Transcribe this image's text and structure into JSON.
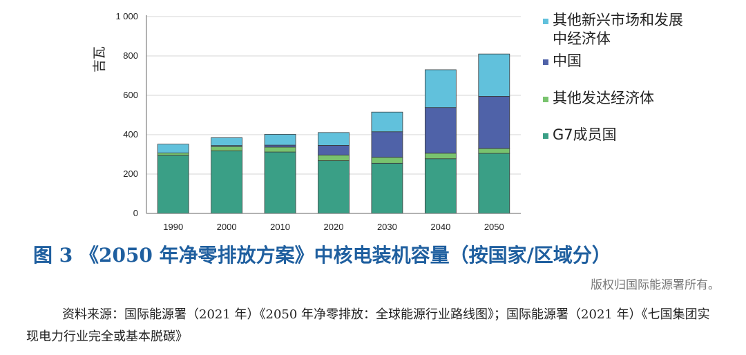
{
  "chart_data": {
    "type": "bar",
    "stacked": true,
    "categories": [
      "1990",
      "2000",
      "2010",
      "2020",
      "2030",
      "2040",
      "2050"
    ],
    "series": [
      {
        "name": "G7成员国",
        "color": "#3a9f86",
        "values": [
          295,
          318,
          312,
          268,
          255,
          278,
          305
        ]
      },
      {
        "name": "其他发达经济体",
        "color": "#79c36e",
        "values": [
          12,
          22,
          25,
          28,
          30,
          28,
          25
        ]
      },
      {
        "name": "中国",
        "color": "#4f62a8",
        "values": [
          0,
          5,
          10,
          50,
          130,
          232,
          265
        ]
      },
      {
        "name": "其他新兴市场和发展中经济体",
        "color": "#61c1dc",
        "values": [
          45,
          40,
          55,
          65,
          100,
          192,
          215
        ]
      }
    ],
    "ylabel": "吉瓦",
    "ylim": [
      0,
      1000
    ],
    "yticks": [
      "0",
      "200",
      "400",
      "600",
      "800",
      "1 000"
    ],
    "ytick_values": [
      0,
      200,
      400,
      600,
      800,
      1000
    ],
    "legend_position": "right",
    "legend": [
      {
        "label": "其他新兴市场和发展中经济体",
        "color": "#61c1dc"
      },
      {
        "label": "中国",
        "color": "#4f62a8"
      },
      {
        "label": "其他发达经济体",
        "color": "#79c36e"
      },
      {
        "label": "G7成员国",
        "color": "#3a9f86"
      }
    ]
  },
  "caption": {
    "title": "图 3 《2050 年净零排放方案》中核电装机容量（按国家/区域分）",
    "copyright": "版权归国际能源署所有。",
    "source": "资料来源：国际能源署（2021 年）《2050 年净零排放：全球能源行业路线图》；国际能源署（2021 年）《七国集团实现电力行业完全或基本脱碳》"
  }
}
